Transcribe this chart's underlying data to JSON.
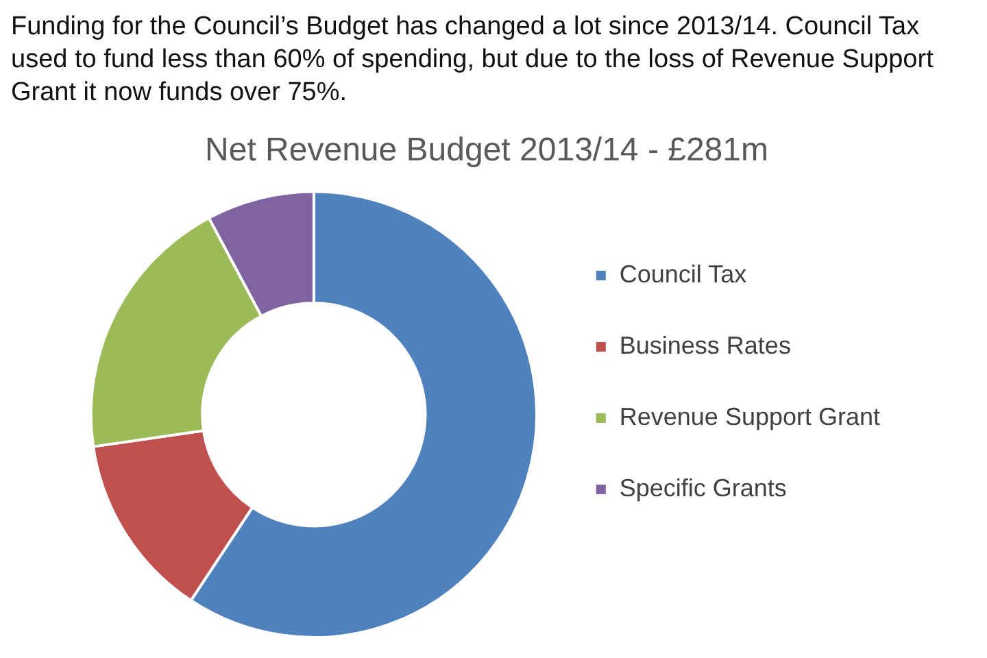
{
  "chart_data": {
    "type": "donut",
    "title": "Net Revenue Budget 2013/14 - £281m",
    "annotations": [
      "Funding for the Council’s Budget has changed a lot since 2013/14. Council Tax used to fund less than 60% of spending, but due to the loss of Revenue Support Grant it now funds over 75%."
    ],
    "categories": [
      "Council Tax",
      "Business Rates",
      "Revenue Support Grant",
      "Specific Grants"
    ],
    "values": [
      59.3,
      13.4,
      19.5,
      7.8
    ],
    "colors": [
      "#4f81bd",
      "#c0504d",
      "#9bbb59",
      "#8064a2"
    ],
    "legend": "right"
  }
}
